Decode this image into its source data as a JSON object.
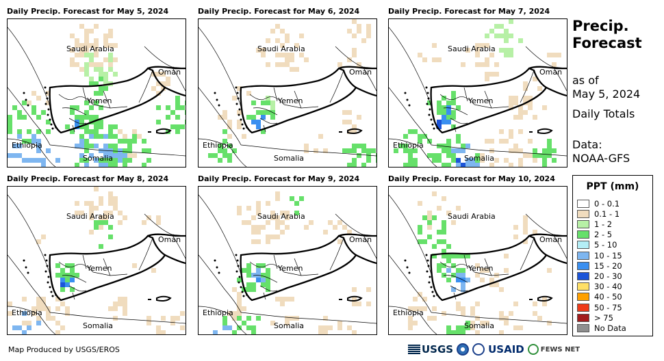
{
  "panels": [
    {
      "title": "Daily Precip. Forecast for May 5, 2024"
    },
    {
      "title": "Daily Precip. Forecast for May 6, 2024"
    },
    {
      "title": "Daily Precip. Forecast for May 7, 2024"
    },
    {
      "title": "Daily Precip. Forecast for May 8, 2024"
    },
    {
      "title": "Daily Precip. Forecast for May 9, 2024"
    },
    {
      "title": "Daily Precip. Forecast for May 10, 2024"
    }
  ],
  "map_labels": {
    "saudi": "Saudi Arabia",
    "oman": "Oman",
    "yemen": "Yemen",
    "ethiopia": "Ethiopia",
    "somalia": "Somalia"
  },
  "side": {
    "title_line1": "Precip.",
    "title_line2": "Forecast",
    "asof_line1": "as of",
    "asof_line2": "May 5, 2024",
    "totals": "Daily Totals",
    "data_line1": "Data:",
    "data_line2": "NOAA-GFS"
  },
  "legend": {
    "title": "PPT (mm)",
    "items": [
      {
        "label": "0 - 0.1",
        "color": "#ffffff"
      },
      {
        "label": "0.1 - 1",
        "color": "#f0dcbe"
      },
      {
        "label": "1 - 2",
        "color": "#b7f0a6"
      },
      {
        "label": "2 - 5",
        "color": "#66e06a"
      },
      {
        "label": "5 - 10",
        "color": "#b4eef6"
      },
      {
        "label": "10 - 15",
        "color": "#7eb6f0"
      },
      {
        "label": "15 - 20",
        "color": "#3a8ff0"
      },
      {
        "label": "20 - 30",
        "color": "#1c55d8"
      },
      {
        "label": "30 - 40",
        "color": "#ffe066"
      },
      {
        "label": "40 - 50",
        "color": "#ffa000"
      },
      {
        "label": "50 - 75",
        "color": "#ee3b1a"
      },
      {
        "label": "> 75",
        "color": "#a31c1c"
      },
      {
        "label": "No Data",
        "color": "#8f8f8f"
      }
    ]
  },
  "credit": "Map Produced by USGS/EROS",
  "logos": {
    "usgs": "USGS",
    "usaid": "USAID",
    "fews": "FEWS NET"
  }
}
